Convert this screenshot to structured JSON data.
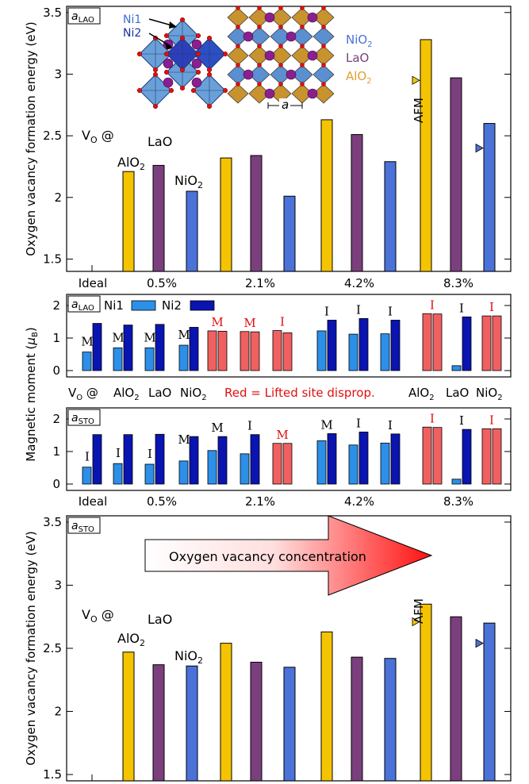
{
  "chart_data": [
    {
      "type": "bar",
      "panel": "top energy",
      "lattice_label": {
        "main": "a",
        "sub": "LAO"
      },
      "ylabel": "Oxygen vacancy formation energy (eV)",
      "ylim": [
        1.4,
        3.55
      ],
      "yticks": [
        "1.5",
        "2",
        "2.5",
        "3",
        "3.5"
      ],
      "categories": [
        "Ideal",
        "0.5%",
        "2.1%",
        "4.2%",
        "8.3%"
      ],
      "series": [
        {
          "name": "AlO2",
          "color": "#f5c400",
          "values": [
            null,
            2.21,
            2.32,
            2.63,
            3.28
          ]
        },
        {
          "name": "LaO",
          "color": "#7b3f7e",
          "values": [
            null,
            2.26,
            2.34,
            2.51,
            2.97
          ]
        },
        {
          "name": "NiO2",
          "color": "#4a72d8",
          "values": [
            null,
            2.05,
            2.01,
            2.29,
            2.6
          ]
        }
      ],
      "afm_markers": [
        {
          "series": "AlO2",
          "category": "8.3%",
          "value": 2.95
        },
        {
          "series": "NiO2",
          "category": "8.3%",
          "value": 2.4
        }
      ],
      "afm_label": "AFM",
      "vacancy_label": {
        "main": "V",
        "sub": "O",
        "suffix": " @"
      },
      "site_labels": [
        {
          "main": "AlO",
          "sub": "2"
        },
        {
          "main": "LaO",
          "sub": ""
        },
        {
          "main": "NiO",
          "sub": "2"
        }
      ],
      "inset": {
        "ni1": "Ni1",
        "ni2": "Ni2",
        "legend": [
          {
            "main": "NiO",
            "sub": "2",
            "color": "#4a72d8"
          },
          {
            "main": "LaO",
            "sub": "",
            "color": "#7b3f7e"
          },
          {
            "main": "AlO",
            "sub": "2",
            "color": "#e0a030"
          }
        ],
        "a_label": "a"
      }
    },
    {
      "type": "bar",
      "panel": "magnetic moments aLAO",
      "lattice_label": {
        "main": "a",
        "sub": "LAO"
      },
      "ylim": [
        0,
        2
      ],
      "yticks": [
        "0",
        "1",
        "2"
      ],
      "legend": [
        {
          "name": "Ni1",
          "color": "#2c8fe8"
        },
        {
          "name": "Ni2",
          "color": "#0a14b0"
        }
      ],
      "groups": [
        {
          "ni1": 0.57,
          "ni2": 1.45,
          "label": "M",
          "red": false,
          "lifted": false
        },
        {
          "ni1": 0.7,
          "ni2": 1.4,
          "label": "M",
          "red": false,
          "lifted": false
        },
        {
          "ni1": 0.7,
          "ni2": 1.42,
          "label": "M",
          "red": false,
          "lifted": false
        },
        {
          "ni1": 0.78,
          "ni2": 1.33,
          "label": "M",
          "red": false,
          "lifted": false
        },
        {
          "ni1": 1.22,
          "ni2": 1.21,
          "label": "M",
          "red": true,
          "lifted": true
        },
        {
          "ni1": 1.2,
          "ni2": 1.19,
          "label": "M",
          "red": true,
          "lifted": true
        },
        {
          "ni1": 1.23,
          "ni2": 1.16,
          "label": "I",
          "red": true,
          "lifted": true
        },
        {
          "ni1": 1.22,
          "ni2": 1.55,
          "label": "I",
          "red": false,
          "lifted": false
        },
        {
          "ni1": 1.12,
          "ni2": 1.6,
          "label": "I",
          "red": false,
          "lifted": false
        },
        {
          "ni1": 1.13,
          "ni2": 1.55,
          "label": "I",
          "red": false,
          "lifted": false
        },
        {
          "ni1": 1.75,
          "ni2": 1.74,
          "label": "I",
          "red": true,
          "lifted": true
        },
        {
          "ni1": 0.15,
          "ni2": 1.65,
          "label": "I",
          "red": false,
          "lifted": false
        },
        {
          "ni1": 1.68,
          "ni2": 1.68,
          "label": "I",
          "red": true,
          "lifted": true
        }
      ]
    },
    {
      "type": "bar",
      "panel": "magnetic moments aSTO",
      "lattice_label": {
        "main": "a",
        "sub": "STO"
      },
      "ylim": [
        0,
        2
      ],
      "yticks": [
        "0",
        "1",
        "2"
      ],
      "groups": [
        {
          "ni1": 0.52,
          "ni2": 1.52,
          "label": "I",
          "red": false,
          "lifted": false
        },
        {
          "ni1": 0.63,
          "ni2": 1.52,
          "label": "I",
          "red": false,
          "lifted": false
        },
        {
          "ni1": 0.61,
          "ni2": 1.53,
          "label": "I",
          "red": false,
          "lifted": false
        },
        {
          "ni1": 0.71,
          "ni2": 1.46,
          "label": "M",
          "red": false,
          "lifted": false
        },
        {
          "ni1": 1.03,
          "ni2": 1.46,
          "label": "M",
          "red": false,
          "lifted": false
        },
        {
          "ni1": 0.93,
          "ni2": 1.52,
          "label": "I",
          "red": false,
          "lifted": false
        },
        {
          "ni1": 1.25,
          "ni2": 1.25,
          "label": "M",
          "red": true,
          "lifted": true
        },
        {
          "ni1": 1.33,
          "ni2": 1.55,
          "label": "M",
          "red": false,
          "lifted": false
        },
        {
          "ni1": 1.2,
          "ni2": 1.6,
          "label": "I",
          "red": false,
          "lifted": false
        },
        {
          "ni1": 1.26,
          "ni2": 1.54,
          "label": "I",
          "red": false,
          "lifted": false
        },
        {
          "ni1": 1.75,
          "ni2": 1.74,
          "label": "I",
          "red": true,
          "lifted": true
        },
        {
          "ni1": 0.15,
          "ni2": 1.68,
          "label": "I",
          "red": false,
          "lifted": false
        },
        {
          "ni1": 1.7,
          "ni2": 1.7,
          "label": "I",
          "red": true,
          "lifted": true
        }
      ]
    },
    {
      "type": "bar",
      "panel": "bottom energy",
      "lattice_label": {
        "main": "a",
        "sub": "STO"
      },
      "ylabel": "Oxygen vacancy formation energy (eV)",
      "ylim": [
        1.45,
        3.55
      ],
      "yticks": [
        "1.5",
        "2",
        "2.5",
        "3",
        "3.5"
      ],
      "series": [
        {
          "name": "AlO2",
          "color": "#f5c400",
          "values": [
            null,
            2.47,
            2.54,
            2.63,
            2.85
          ]
        },
        {
          "name": "LaO",
          "color": "#7b3f7e",
          "values": [
            null,
            2.37,
            2.39,
            2.43,
            2.75
          ]
        },
        {
          "name": "NiO2",
          "color": "#4a72d8",
          "values": [
            null,
            2.36,
            2.35,
            2.42,
            2.7
          ]
        }
      ],
      "afm_markers": [
        {
          "series": "AlO2",
          "category": "8.3%",
          "value": 2.71
        },
        {
          "series": "NiO2",
          "category": "8.3%",
          "value": 2.54
        }
      ],
      "afm_label": "AFM",
      "arrow_label": "Oxygen vacancy concentration"
    }
  ],
  "moment_axis": {
    "main": "Magnetic moment (",
    "mu": "μ",
    "sub": "B",
    "close": ")"
  },
  "middle_row": {
    "vo": {
      "main": "V",
      "sub": "O",
      "suffix": " @"
    },
    "left_sites": [
      "AlO2",
      "LaO",
      "NiO2"
    ],
    "left_sites_fmt": [
      {
        "main": "AlO",
        "sub": "2"
      },
      {
        "main": "LaO",
        "sub": ""
      },
      {
        "main": "NiO",
        "sub": "2"
      }
    ],
    "red_note": "Red = Lifted site disprop.",
    "right_sites_fmt": [
      {
        "main": "AlO",
        "sub": "2"
      },
      {
        "main": "LaO",
        "sub": ""
      },
      {
        "main": "NiO",
        "sub": "2"
      }
    ]
  },
  "bottom_categories": [
    "Ideal",
    "0.5%",
    "2.1%",
    "4.2%",
    "8.3%"
  ],
  "colors": {
    "ni1": "#2c8fe8",
    "ni2": "#0a14b0",
    "red": "#f06060",
    "label_red": "#e01010",
    "alo2": "#f5c400",
    "lao": "#7b3f7e",
    "nio2": "#4a72d8"
  }
}
